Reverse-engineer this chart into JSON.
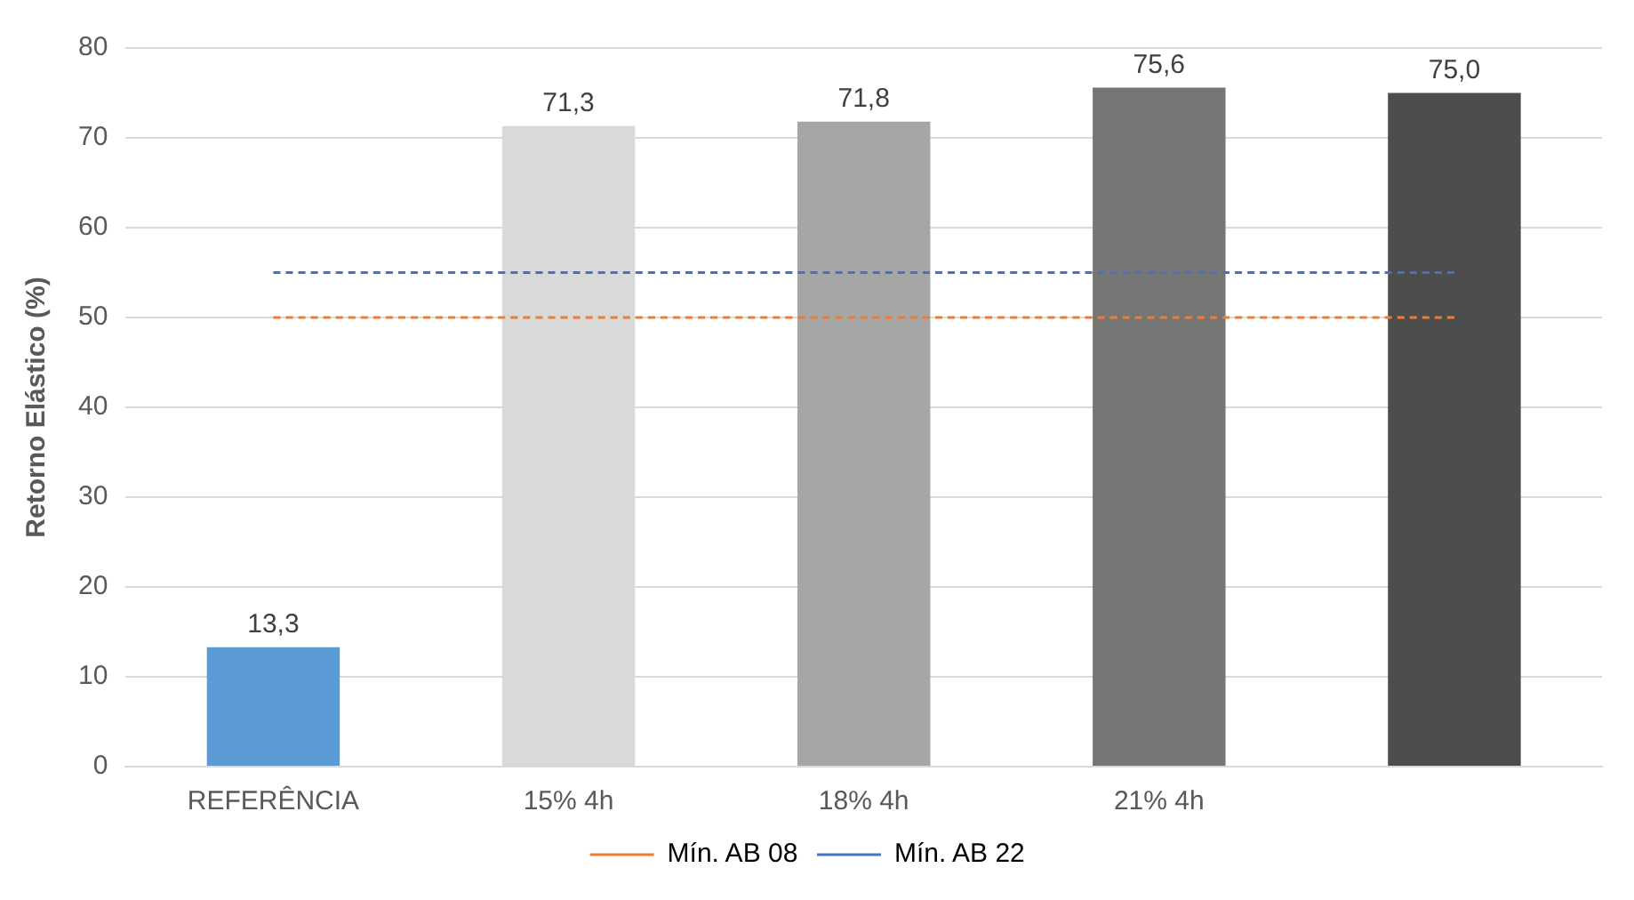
{
  "chart_data": {
    "type": "bar",
    "ylabel": "Retorno Elástico (%)",
    "categories": [
      "REFERÊNCIA",
      "15% 4h",
      "18% 4h",
      "21% 4h",
      null
    ],
    "series": [
      {
        "colors": [
          "#5b9bd5",
          "#d9d9d9",
          "#a6a6a6",
          "#767676",
          "#4d4d4d"
        ],
        "values": [
          13.3,
          71.3,
          71.8,
          75.6,
          75.0
        ],
        "value_labels": [
          "13,3",
          "71,3",
          "71,8",
          "75,6",
          "75,0"
        ]
      },
      {
        "type": "line",
        "name": "Mín. AB 08",
        "color": "#ed7d31",
        "values": [
          50,
          50,
          50,
          50,
          50
        ],
        "line_style": "dashed"
      },
      {
        "type": "line",
        "name": "Mín. AB 22",
        "color": "#4472c4",
        "values": [
          55,
          55,
          55,
          55,
          55
        ],
        "line_style": "dashed"
      }
    ],
    "ylim": [
      0,
      80
    ],
    "yticks": [
      0,
      10,
      20,
      30,
      40,
      50,
      60,
      70,
      80
    ],
    "grid": "y",
    "legend": "bottom",
    "marker": "none"
  }
}
